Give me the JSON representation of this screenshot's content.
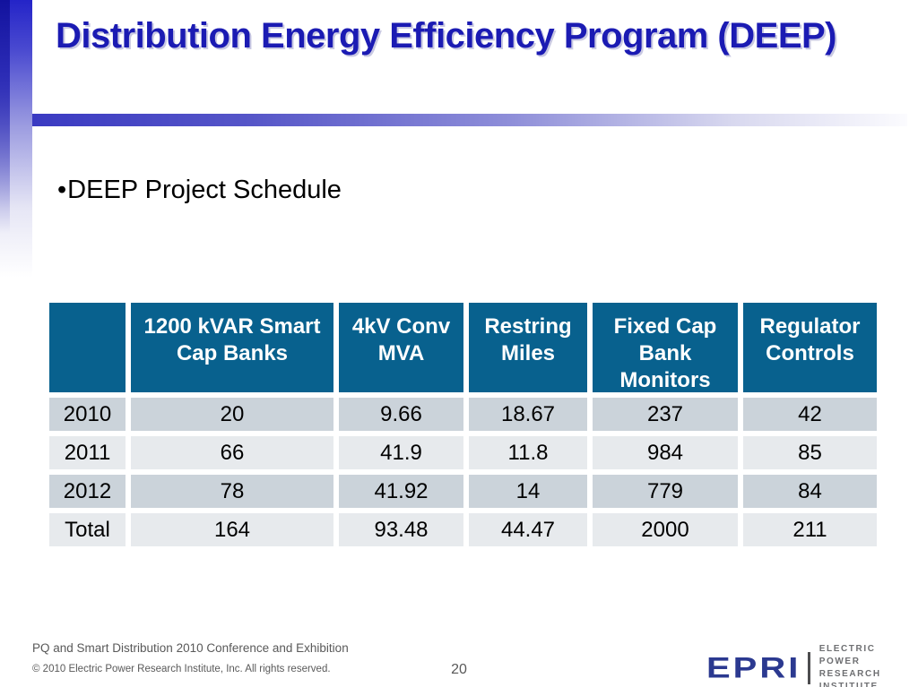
{
  "slide": {
    "title": "Distribution Energy Efficiency Program (DEEP)",
    "bullet_glyph": "•",
    "bullet_text": "DEEP Project Schedule"
  },
  "table": {
    "columns": [
      "",
      "1200 kVAR Smart Cap Banks",
      "4kV Conv MVA",
      "Restring Miles",
      "Fixed Cap Bank Monitors",
      "Regulator Controls"
    ],
    "rows": [
      {
        "label": "2010",
        "values": [
          "20",
          "9.66",
          "18.67",
          "237",
          "42"
        ]
      },
      {
        "label": "2011",
        "values": [
          "66",
          "41.9",
          "11.8",
          "984",
          "85"
        ]
      },
      {
        "label": "2012",
        "values": [
          "78",
          "41.92",
          "14",
          "779",
          "84"
        ]
      },
      {
        "label": "Total",
        "values": [
          "164",
          "93.48",
          "44.47",
          "2000",
          "211"
        ]
      }
    ]
  },
  "footer": {
    "conference": "PQ and Smart Distribution 2010 Conference and Exhibition",
    "copyright": "© 2010 Electric Power Research Institute, Inc. All rights reserved.",
    "page_number": "20",
    "logo_word": "EPRI",
    "logo_caption_line1": "ELECTRIC POWER",
    "logo_caption_line2": "RESEARCH INSTITUTE"
  },
  "colors": {
    "title_blue": "#1b1bb3",
    "accent_bar_blue": "#2424c8",
    "table_header_teal": "#08618e",
    "row_dark": "#cbd3da",
    "row_light": "#e7eaed",
    "footer_gray": "#595959",
    "logo_navy": "#2b3990"
  }
}
